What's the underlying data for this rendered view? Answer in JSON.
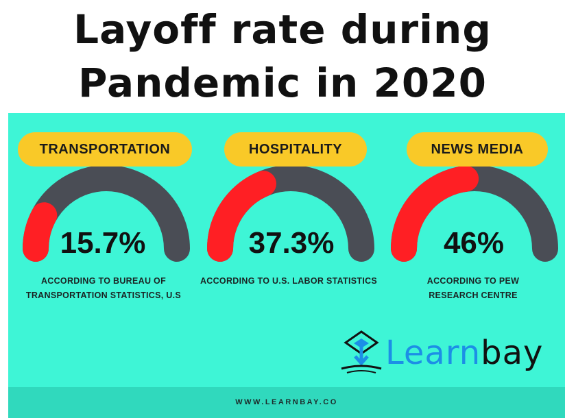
{
  "title": {
    "line1": "Layoff rate during",
    "line2": "Pandemic in 2020"
  },
  "colors": {
    "panel": "#3ef5d6",
    "pill": "#f9c928",
    "gauge_track": "#4a4d55",
    "gauge_fill": "#ff1f24",
    "brand_blue": "#1c8fe6"
  },
  "chart_data": {
    "type": "gauge",
    "value_range": [
      0,
      100
    ],
    "items": [
      {
        "category": "TRANSPORTATION",
        "value": 15.7,
        "label": "15.7%",
        "source": "ACCORDING TO BUREAU OF TRANSPORTATION STATISTICS, U.S"
      },
      {
        "category": "HOSPITALITY",
        "value": 37.3,
        "label": "37.3%",
        "source": "ACCORDING TO U.S. LABOR STATISTICS"
      },
      {
        "category": "NEWS MEDIA",
        "value": 46,
        "label": "46%",
        "source": "ACCORDING TO PEW RESEARCH CENTRE"
      }
    ]
  },
  "brand": {
    "part1": "Learn",
    "part2": "bay",
    "icon": "learnbay-logo-icon"
  },
  "footer": {
    "url": "WWW.LEARNBAY.CO"
  }
}
